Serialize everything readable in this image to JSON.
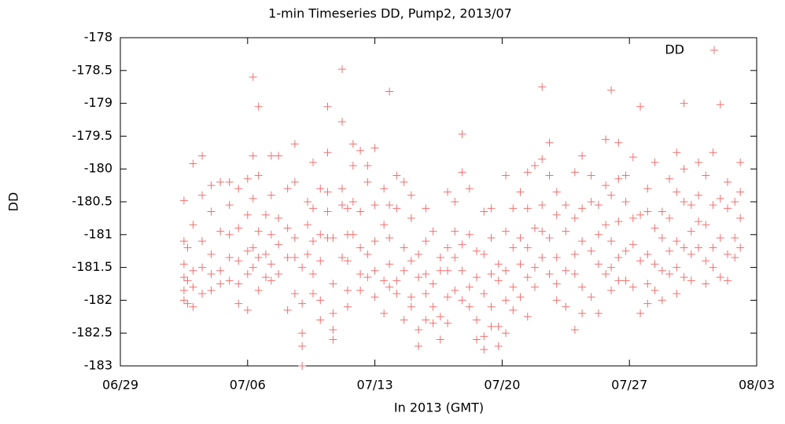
{
  "chart_data": {
    "type": "scatter",
    "title": "1-min Timeseries DD, Pump2, 2013/07",
    "x_label": "In 2013 (GMT)",
    "y_label": "DD",
    "xlim": [
      0,
      35
    ],
    "xticks": [
      {
        "value": 0,
        "label": "06/29"
      },
      {
        "value": 7,
        "label": "07/06"
      },
      {
        "value": 14,
        "label": "07/13"
      },
      {
        "value": 21,
        "label": "07/20"
      },
      {
        "value": 28,
        "label": "07/27"
      },
      {
        "value": 35,
        "label": "08/03"
      }
    ],
    "ylim": [
      -183,
      -178
    ],
    "yticks": [
      -183,
      -182.5,
      -182,
      -181.5,
      -181,
      -180.5,
      -180,
      -179.5,
      -179,
      -178.5,
      -178
    ],
    "legend": "top-right",
    "series": [
      {
        "name": "DD",
        "color": "#f07070",
        "x": [
          3.5,
          3.5,
          3.5,
          3.5,
          3.5,
          3.5,
          3.7,
          3.7,
          3.7,
          4.0,
          4.0,
          4.0,
          4.0,
          4.0,
          4.5,
          4.5,
          4.5,
          4.5,
          4.5,
          5.0,
          5.0,
          5.0,
          5.0,
          5.0,
          5.5,
          5.5,
          5.5,
          5.5,
          6.0,
          6.0,
          6.0,
          6.0,
          6.0,
          6.5,
          6.5,
          6.5,
          6.5,
          6.5,
          7.0,
          7.0,
          7.0,
          7.0,
          7.0,
          7.3,
          7.3,
          7.3,
          7.3,
          7.3,
          7.6,
          7.6,
          7.6,
          7.6,
          7.6,
          8.0,
          8.0,
          8.0,
          8.3,
          8.3,
          8.3,
          8.3,
          8.3,
          8.7,
          8.7,
          8.7,
          8.7,
          9.2,
          9.2,
          9.2,
          9.2,
          9.6,
          9.6,
          9.6,
          9.6,
          9.6,
          10.0,
          10.0,
          10.0,
          10.0,
          10.0,
          10.3,
          10.3,
          10.3,
          10.6,
          10.6,
          10.6,
          10.6,
          10.6,
          11.0,
          11.0,
          11.0,
          11.0,
          11.0,
          11.4,
          11.4,
          11.4,
          11.4,
          11.4,
          11.7,
          11.7,
          11.7,
          11.7,
          11.7,
          12.2,
          12.2,
          12.2,
          12.2,
          12.2,
          12.5,
          12.5,
          12.5,
          12.5,
          12.5,
          12.8,
          12.8,
          12.8,
          12.8,
          13.2,
          13.2,
          13.2,
          13.2,
          13.2,
          13.6,
          13.6,
          13.6,
          13.6,
          14.0,
          14.0,
          14.0,
          14.0,
          14.0,
          14.5,
          14.5,
          14.5,
          14.5,
          14.8,
          14.8,
          14.8,
          14.8,
          14.8,
          15.2,
          15.2,
          15.2,
          15.2,
          15.6,
          15.6,
          15.6,
          15.6,
          16.0,
          16.0,
          16.0,
          16.0,
          16.0,
          16.4,
          16.4,
          16.4,
          16.4,
          16.8,
          16.8,
          16.8,
          16.8,
          16.8,
          17.2,
          17.2,
          17.2,
          17.2,
          17.6,
          17.6,
          17.6,
          17.6,
          18.0,
          18.0,
          18.0,
          18.0,
          18.0,
          18.4,
          18.4,
          18.4,
          18.4,
          18.8,
          18.8,
          18.8,
          18.8,
          18.8,
          19.2,
          19.2,
          19.2,
          19.2,
          19.6,
          19.6,
          19.6,
          19.6,
          20.0,
          20.0,
          20.0,
          20.0,
          20.0,
          20.4,
          20.4,
          20.4,
          20.4,
          20.4,
          20.8,
          20.8,
          20.8,
          20.8,
          21.2,
          21.2,
          21.2,
          21.2,
          21.2,
          21.6,
          21.6,
          21.6,
          21.6,
          22.0,
          22.0,
          22.0,
          22.0,
          22.4,
          22.4,
          22.4,
          22.4,
          22.4,
          22.8,
          22.8,
          22.8,
          22.8,
          23.2,
          23.2,
          23.2,
          23.2,
          23.2,
          23.6,
          23.6,
          23.6,
          23.6,
          24.0,
          24.0,
          24.0,
          24.0,
          24.0,
          24.5,
          24.5,
          24.5,
          24.5,
          25.0,
          25.0,
          25.0,
          25.0,
          25.0,
          25.4,
          25.4,
          25.4,
          25.4,
          25.4,
          25.9,
          25.9,
          25.9,
          25.9,
          26.3,
          26.3,
          26.3,
          26.3,
          26.7,
          26.7,
          26.7,
          26.7,
          27.0,
          27.0,
          27.0,
          27.0,
          27.0,
          27.4,
          27.4,
          27.4,
          27.4,
          27.4,
          27.8,
          27.8,
          27.8,
          27.8,
          28.2,
          28.2,
          28.2,
          28.2,
          28.6,
          28.6,
          28.6,
          28.6,
          29.0,
          29.0,
          29.0,
          29.0,
          29.0,
          29.4,
          29.4,
          29.4,
          29.4,
          29.8,
          29.8,
          29.8,
          29.8,
          30.2,
          30.2,
          30.2,
          30.2,
          30.6,
          30.6,
          30.6,
          30.6,
          30.6,
          31.0,
          31.0,
          31.0,
          31.0,
          31.0,
          31.4,
          31.4,
          31.4,
          31.4,
          31.8,
          31.8,
          31.8,
          31.8,
          32.2,
          32.2,
          32.2,
          32.2,
          32.6,
          32.6,
          32.6,
          32.6,
          33.0,
          33.0,
          33.0,
          33.0,
          33.4,
          33.4,
          33.4,
          33.4,
          33.8,
          33.8,
          33.8,
          34.1,
          34.1,
          34.1,
          34.1
        ],
        "values": [
          -180.48,
          -181.1,
          -181.45,
          -181.65,
          -181.85,
          -182.0,
          -181.2,
          -181.7,
          -182.05,
          -179.92,
          -180.85,
          -181.55,
          -181.8,
          -182.1,
          -179.8,
          -180.4,
          -181.1,
          -181.5,
          -181.9,
          -180.25,
          -180.65,
          -181.3,
          -181.6,
          -181.85,
          -180.2,
          -180.95,
          -181.55,
          -181.75,
          -180.2,
          -180.55,
          -181.0,
          -181.35,
          -181.7,
          -180.3,
          -180.9,
          -181.4,
          -181.75,
          -182.05,
          -180.15,
          -180.7,
          -181.25,
          -181.6,
          -182.15,
          -178.6,
          -179.8,
          -180.45,
          -181.2,
          -181.5,
          -179.05,
          -180.1,
          -180.95,
          -181.35,
          -181.85,
          -180.7,
          -181.3,
          -181.65,
          -179.8,
          -180.4,
          -181.0,
          -181.45,
          -181.7,
          -179.8,
          -180.75,
          -181.15,
          -181.6,
          -180.3,
          -180.9,
          -181.35,
          -182.15,
          -179.62,
          -180.2,
          -181.05,
          -181.35,
          -181.9,
          -182.5,
          -182.7,
          -183.0,
          -182.05,
          -181.5,
          -180.5,
          -180.85,
          -181.3,
          -179.9,
          -180.6,
          -181.1,
          -181.6,
          -181.9,
          -180.3,
          -181.0,
          -181.4,
          -182.3,
          -182.0,
          -179.05,
          -179.75,
          -180.35,
          -180.65,
          -181.05,
          -181.05,
          -181.75,
          -182.2,
          -182.45,
          -182.6,
          -178.48,
          -179.28,
          -180.3,
          -180.55,
          -181.35,
          -180.6,
          -181.0,
          -181.4,
          -181.85,
          -182.1,
          -179.62,
          -179.95,
          -180.5,
          -181.0,
          -179.72,
          -180.65,
          -181.2,
          -181.6,
          -181.85,
          -179.95,
          -180.2,
          -181.3,
          -181.65,
          -179.68,
          -180.55,
          -181.1,
          -181.55,
          -181.95,
          -180.3,
          -180.85,
          -181.7,
          -182.2,
          -178.82,
          -180.55,
          -181.05,
          -181.45,
          -181.8,
          -180.1,
          -180.6,
          -181.7,
          -181.9,
          -180.2,
          -181.2,
          -181.55,
          -182.3,
          -180.4,
          -180.75,
          -181.4,
          -181.95,
          -182.1,
          -181.3,
          -181.65,
          -182.45,
          -182.7,
          -180.6,
          -181.1,
          -181.6,
          -181.9,
          -182.3,
          -180.95,
          -181.75,
          -182.1,
          -182.35,
          -181.35,
          -181.55,
          -182.25,
          -182.6,
          -180.35,
          -181.2,
          -181.55,
          -181.95,
          -182.35,
          -180.5,
          -180.95,
          -181.35,
          -181.85,
          -179.47,
          -180.05,
          -181.15,
          -181.55,
          -182.0,
          -180.3,
          -181.0,
          -181.8,
          -182.1,
          -181.25,
          -181.65,
          -182.3,
          -182.6,
          -180.65,
          -181.3,
          -181.9,
          -182.55,
          -182.75,
          -180.6,
          -181.05,
          -181.6,
          -182.1,
          -182.4,
          -181.45,
          -181.7,
          -182.4,
          -182.7,
          -180.1,
          -180.95,
          -181.55,
          -182.0,
          -182.5,
          -180.6,
          -181.2,
          -181.8,
          -182.15,
          -180.35,
          -181.05,
          -181.45,
          -181.95,
          -180.05,
          -180.6,
          -181.2,
          -181.65,
          -182.25,
          -179.95,
          -180.9,
          -181.5,
          -181.8,
          -178.75,
          -179.85,
          -180.55,
          -180.95,
          -181.35,
          -179.6,
          -180.1,
          -181.05,
          -181.6,
          -180.35,
          -180.7,
          -181.35,
          -181.75,
          -182.0,
          -180.55,
          -180.95,
          -181.55,
          -182.1,
          -180.05,
          -180.75,
          -181.3,
          -181.6,
          -182.45,
          -179.8,
          -180.6,
          -181.1,
          -181.8,
          -182.2,
          -180.1,
          -180.5,
          -181.25,
          -181.95,
          -180.55,
          -181.0,
          -181.45,
          -182.2,
          -179.55,
          -180.25,
          -180.85,
          -181.6,
          -178.8,
          -180.4,
          -181.1,
          -181.5,
          -181.85,
          -179.6,
          -180.15,
          -180.8,
          -181.35,
          -181.7,
          -180.1,
          -180.5,
          -181.25,
          -181.7,
          -179.82,
          -180.75,
          -181.15,
          -181.8,
          -179.05,
          -180.7,
          -181.4,
          -182.2,
          -180.3,
          -180.65,
          -181.3,
          -181.75,
          -182.05,
          -179.9,
          -180.9,
          -181.45,
          -181.85,
          -180.65,
          -181.05,
          -181.55,
          -182.0,
          -180.15,
          -180.75,
          -181.25,
          -181.6,
          -179.75,
          -180.35,
          -181.1,
          -181.5,
          -181.9,
          -179.0,
          -180.0,
          -180.5,
          -181.2,
          -181.65,
          -180.55,
          -180.95,
          -181.3,
          -181.7,
          -179.9,
          -180.4,
          -180.8,
          -181.2,
          -180.1,
          -180.85,
          -181.4,
          -181.75,
          -179.75,
          -180.55,
          -181.2,
          -181.5,
          -179.02,
          -180.45,
          -181.05,
          -181.65,
          -180.2,
          -180.6,
          -181.3,
          -181.7,
          -180.5,
          -181.05,
          -181.35,
          -179.9,
          -180.35,
          -180.75,
          -181.2
        ]
      }
    ]
  }
}
